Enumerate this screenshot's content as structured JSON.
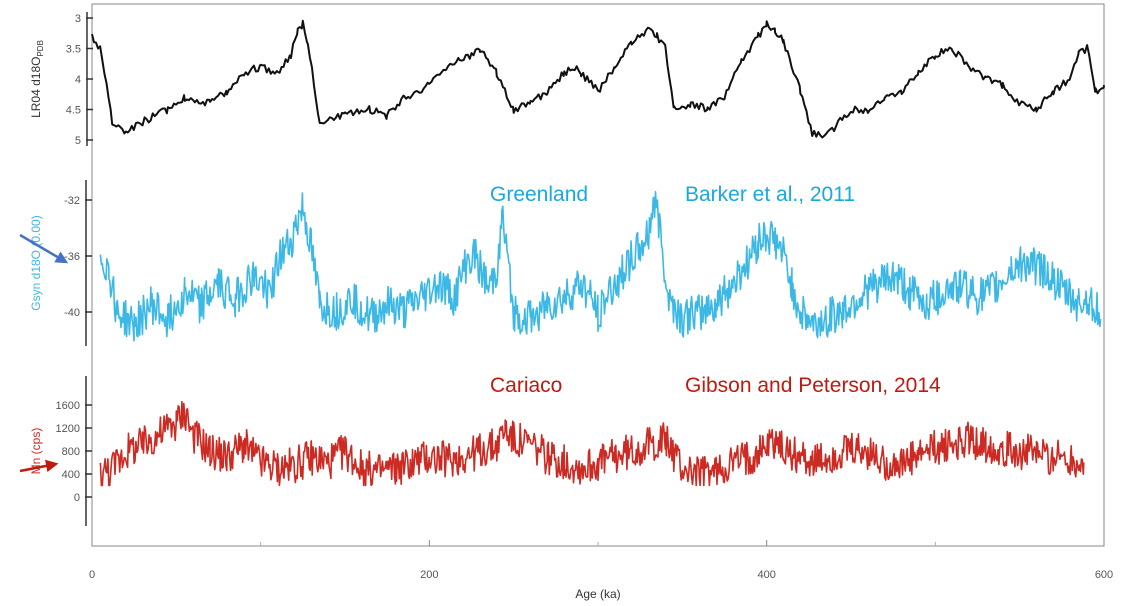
{
  "colors": {
    "lr04": "#111111",
    "greenland": "#3cb8e6",
    "cariaco": "#cc2a22",
    "anno_blue": "#1aa8e0",
    "anno_red": "#c0190f",
    "arrow_blue": "#4472c4"
  },
  "chart_data": {
    "type": "line",
    "xlabel": "Age (ka)",
    "xlim": [
      0,
      600
    ],
    "xticks": [
      0,
      200,
      400,
      600
    ],
    "xtick_labels": [
      "0",
      "200",
      "400",
      "600"
    ],
    "panels": [
      {
        "id": "lr04",
        "ylabel": "LR04 d18O",
        "ylabel_sub": "PDB",
        "ylim": [
          3,
          5
        ],
        "inverted": true,
        "yticks": [
          3,
          3.5,
          4,
          4.5,
          5
        ],
        "ytick_labels": [
          "3",
          "3.5",
          "4",
          "4.5",
          "5"
        ],
        "series": {
          "x": [
            0,
            5,
            12,
            20,
            30,
            45,
            55,
            70,
            80,
            90,
            100,
            110,
            118,
            122,
            125,
            128,
            135,
            150,
            165,
            175,
            185,
            193,
            200,
            210,
            218,
            225,
            230,
            240,
            250,
            260,
            270,
            280,
            285,
            290,
            300,
            310,
            320,
            330,
            335,
            340,
            345,
            355,
            365,
            375,
            385,
            395,
            400,
            405,
            410,
            420,
            427,
            434,
            440,
            450,
            460,
            470,
            480,
            490,
            500,
            510,
            520,
            530,
            540,
            550,
            560,
            570,
            580,
            585,
            590,
            595,
            600
          ],
          "y": [
            3.3,
            3.5,
            4.7,
            4.9,
            4.7,
            4.5,
            4.3,
            4.4,
            4.2,
            3.9,
            3.8,
            3.9,
            3.6,
            3.2,
            3.1,
            3.4,
            4.7,
            4.6,
            4.5,
            4.6,
            4.3,
            4.2,
            4.1,
            3.8,
            3.7,
            3.6,
            3.5,
            3.9,
            4.5,
            4.4,
            4.2,
            3.9,
            3.8,
            3.9,
            4.2,
            3.8,
            3.4,
            3.2,
            3.3,
            3.5,
            4.5,
            4.4,
            4.5,
            4.3,
            3.7,
            3.3,
            3.1,
            3.2,
            3.4,
            4.2,
            4.9,
            4.95,
            4.8,
            4.5,
            4.5,
            4.3,
            4.2,
            3.9,
            3.6,
            3.5,
            3.8,
            4.0,
            4.1,
            4.4,
            4.5,
            4.2,
            4.0,
            3.6,
            3.5,
            4.2,
            4.1
          ]
        }
      },
      {
        "id": "greenland",
        "ylabel": "Gsyn d18O (0.00)",
        "ylim": [
          -42,
          -31
        ],
        "yticks": [
          -32,
          -36,
          -40
        ],
        "ytick_labels": [
          "-32",
          "-36",
          "-40"
        ],
        "series": {
          "name": "Greenland",
          "x": [
            5,
            10,
            15,
            25,
            35,
            45,
            55,
            65,
            75,
            85,
            95,
            105,
            112,
            118,
            122,
            125,
            130,
            135,
            145,
            155,
            165,
            175,
            185,
            195,
            205,
            215,
            222,
            228,
            235,
            240,
            243,
            245,
            250,
            260,
            270,
            280,
            290,
            300,
            310,
            318,
            325,
            330,
            333,
            336,
            342,
            350,
            360,
            370,
            380,
            390,
            395,
            400,
            405,
            410,
            415,
            420,
            428,
            435,
            445,
            455,
            465,
            475,
            485,
            495,
            505,
            515,
            525,
            535,
            545,
            555,
            565,
            575,
            585,
            592,
            598
          ],
          "y": [
            -36,
            -37,
            -40,
            -41,
            -39.5,
            -40.5,
            -38.5,
            -39.5,
            -38,
            -39,
            -37.5,
            -38.5,
            -36,
            -35,
            -33.5,
            -32.5,
            -35.5,
            -39.5,
            -40,
            -39,
            -40.5,
            -39.5,
            -40,
            -39,
            -38,
            -39,
            -36.5,
            -36,
            -38.5,
            -37,
            -33,
            -35,
            -40,
            -40.5,
            -39.5,
            -39,
            -38,
            -40,
            -38,
            -36.5,
            -35.5,
            -34.5,
            -32,
            -33.5,
            -39,
            -40.5,
            -40,
            -39.5,
            -38,
            -36,
            -35,
            -34.5,
            -35,
            -36,
            -38,
            -40,
            -41,
            -40.5,
            -40,
            -39,
            -38,
            -37.5,
            -38.5,
            -39.5,
            -38.5,
            -38,
            -39,
            -38.5,
            -37,
            -36.5,
            -37,
            -38.5,
            -39.5,
            -39,
            -40.5
          ]
        }
      },
      {
        "id": "cariaco",
        "ylabel": "Mn (cps)",
        "ylim": [
          -400,
          2000
        ],
        "yticks": [
          1600,
          1200,
          800,
          400,
          0
        ],
        "ytick_labels": [
          "1600",
          "1200",
          "800",
          "400",
          "0"
        ],
        "series": {
          "name": "Cariaco",
          "x": [
            5,
            12,
            20,
            30,
            40,
            50,
            55,
            60,
            70,
            80,
            90,
            100,
            110,
            120,
            130,
            140,
            150,
            160,
            170,
            180,
            190,
            200,
            210,
            220,
            230,
            240,
            245,
            250,
            260,
            270,
            280,
            290,
            300,
            310,
            320,
            330,
            340,
            350,
            360,
            370,
            380,
            390,
            400,
            405,
            410,
            420,
            430,
            440,
            450,
            460,
            470,
            480,
            490,
            500,
            510,
            520,
            530,
            540,
            550,
            560,
            570,
            580,
            588
          ],
          "y": [
            400,
            500,
            800,
            900,
            1100,
            1300,
            1500,
            1100,
            800,
            700,
            900,
            600,
            500,
            550,
            700,
            600,
            800,
            500,
            450,
            500,
            600,
            700,
            650,
            700,
            800,
            900,
            1200,
            1000,
            900,
            700,
            600,
            500,
            600,
            700,
            800,
            900,
            1000,
            500,
            400,
            450,
            600,
            700,
            900,
            1000,
            800,
            700,
            600,
            700,
            800,
            750,
            600,
            550,
            700,
            850,
            900,
            1000,
            900,
            850,
            800,
            750,
            700,
            650,
            600
          ]
        }
      }
    ],
    "annotations": [
      {
        "text": "Greenland",
        "color": "blue"
      },
      {
        "text": "Barker et al., 2011",
        "color": "blue"
      },
      {
        "text": "Cariaco",
        "color": "red"
      },
      {
        "text": "Gibson and Peterson, 2014",
        "color": "red"
      }
    ]
  }
}
